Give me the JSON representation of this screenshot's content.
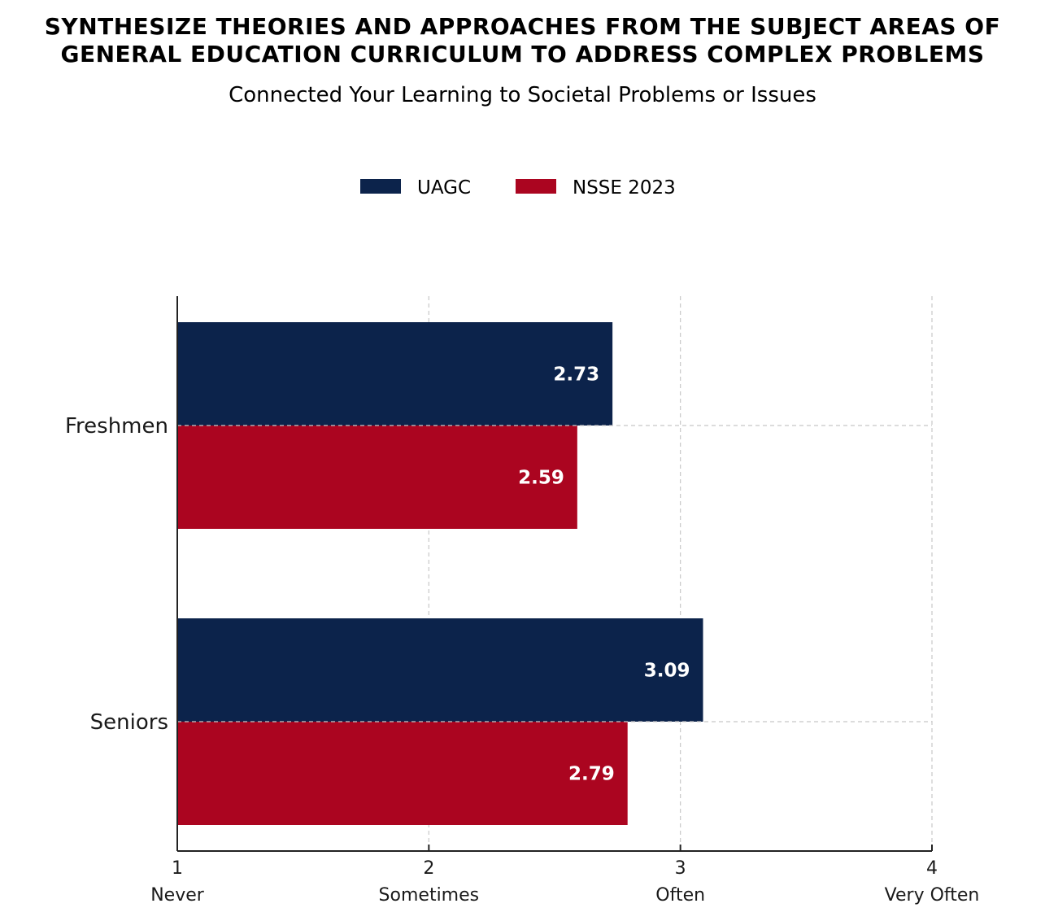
{
  "chart_data": {
    "type": "bar",
    "orientation": "horizontal",
    "title_lines": [
      "SYNTHESIZE THEORIES AND APPROACHES FROM THE SUBJECT AREAS OF",
      "GENERAL EDUCATION CURRICULUM TO ADDRESS COMPLEX PROBLEMS"
    ],
    "subtitle": "Connected Your Learning to Societal Problems or Issues",
    "categories": [
      "Freshmen",
      "Seniors"
    ],
    "series": [
      {
        "name": "UAGC",
        "color": "#0c234b",
        "values": [
          2.73,
          3.09
        ],
        "labels": [
          "2.73",
          "3.09"
        ]
      },
      {
        "name": "NSSE 2023",
        "color": "#ab0520",
        "values": [
          2.59,
          2.79
        ],
        "labels": [
          "2.59",
          "2.79"
        ]
      }
    ],
    "xlim": [
      1,
      4
    ],
    "xticks": [
      {
        "value": 1,
        "number": "1",
        "label": "Never"
      },
      {
        "value": 2,
        "number": "2",
        "label": "Sometimes"
      },
      {
        "value": 3,
        "number": "3",
        "label": "Often"
      },
      {
        "value": 4,
        "number": "4",
        "label": "Very Often"
      }
    ],
    "grid": true,
    "legend_position": "top-center"
  }
}
